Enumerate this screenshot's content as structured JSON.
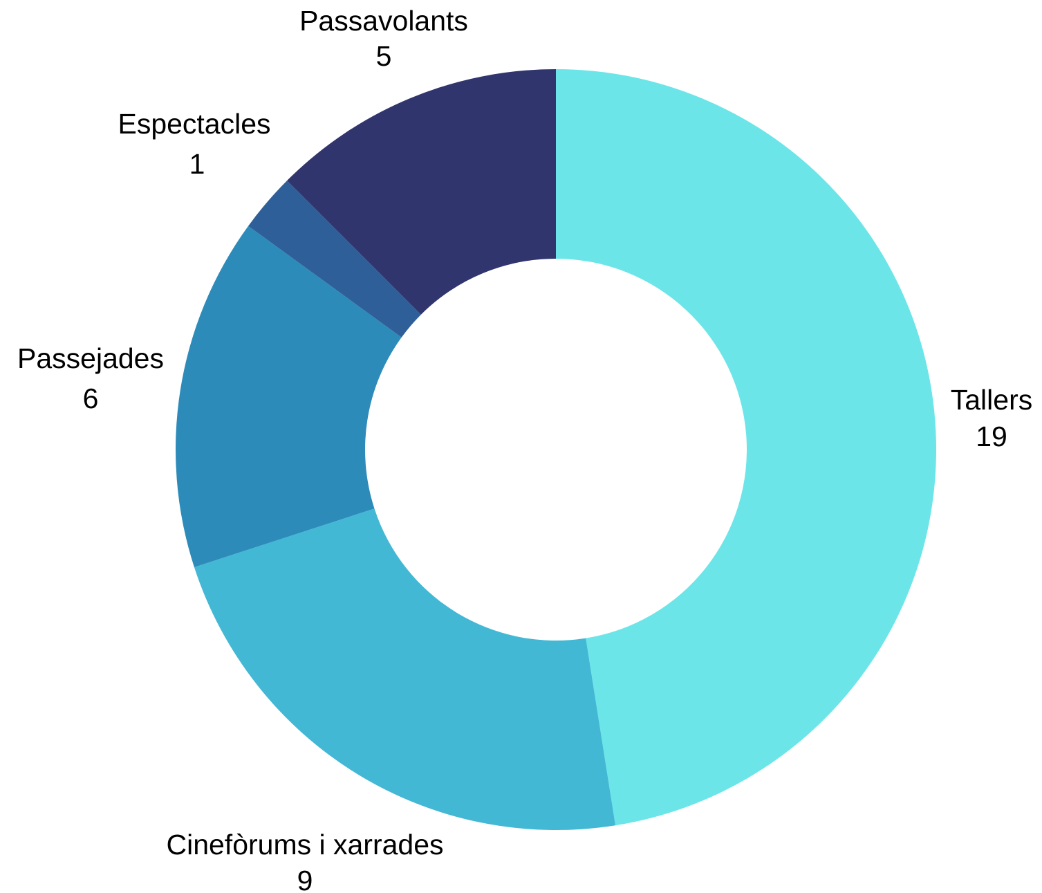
{
  "chart_data": {
    "type": "pie",
    "donut": true,
    "title": "",
    "categories": [
      "Tallers",
      "Cinefòrums i xarrades",
      "Passejades",
      "Espectacles",
      "Passavolants"
    ],
    "values": [
      19,
      9,
      6,
      1,
      5
    ],
    "colors": [
      "#6ce5e8",
      "#42b8d5",
      "#2d8bba",
      "#2f5f98",
      "#31356e"
    ],
    "legend": "none",
    "labels": [
      {
        "name": "Tallers",
        "value": "19"
      },
      {
        "name": "Cinefòrums i xarrades",
        "value": "9"
      },
      {
        "name": "Passejades",
        "value": "6"
      },
      {
        "name": "Espectacles",
        "value": "1"
      },
      {
        "name": "Passavolants",
        "value": "5"
      }
    ]
  }
}
